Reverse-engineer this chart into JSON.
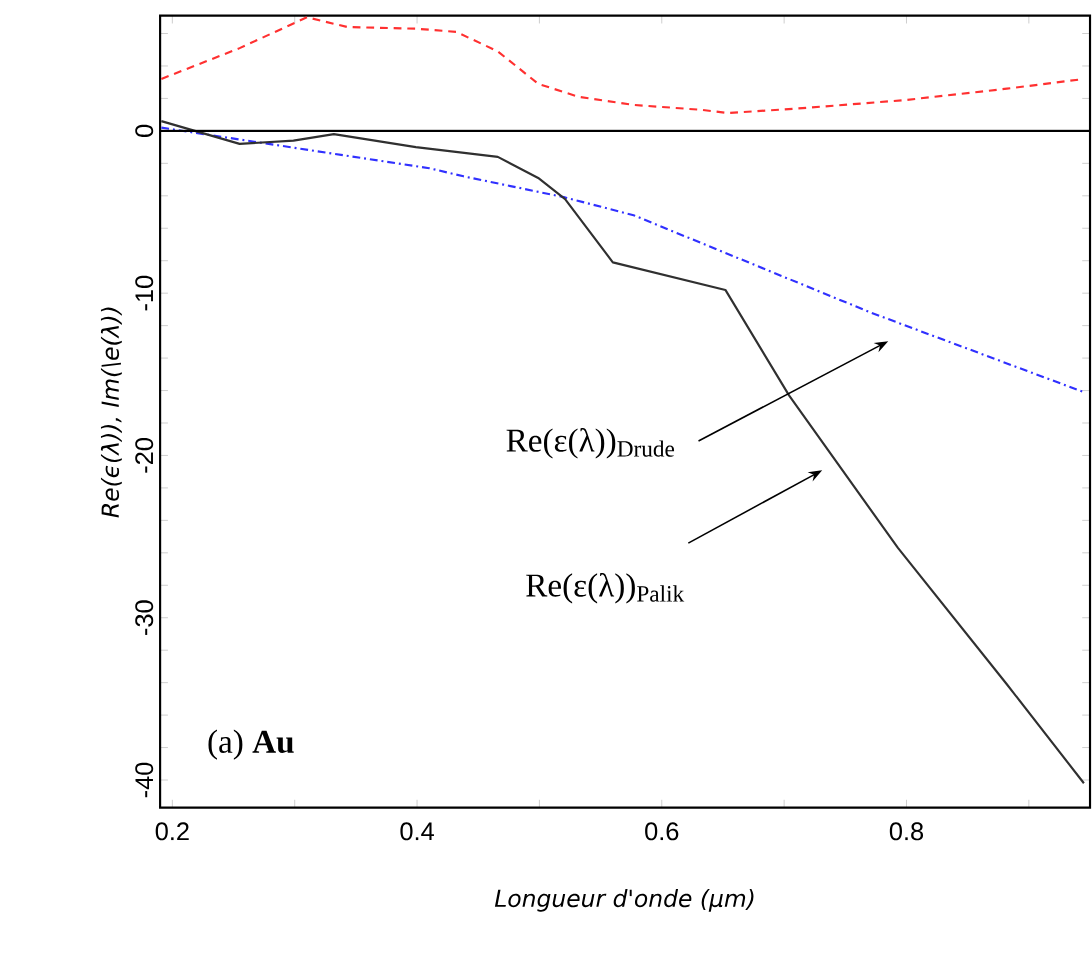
{
  "chart_data": {
    "type": "line",
    "xlabel": "Longueur d'onde (μm)",
    "ylabel": "Re(ϵ(λ)), Im(\\e(λ))",
    "xlim": [
      0.19,
      0.95
    ],
    "ylim": [
      -41.7,
      7.1
    ],
    "xticks": [
      0.2,
      {
        "value": 0.3,
        "label": null
      },
      0.4,
      {
        "value": 0.5,
        "label": null
      },
      0.6,
      {
        "value": 0.7,
        "label": null
      },
      0.8,
      {
        "value": 0.9,
        "label": null
      }
    ],
    "yticks": [
      {
        "value": 6,
        "label": null
      },
      {
        "value": 4,
        "label": null
      },
      {
        "value": 2,
        "label": null
      },
      0,
      {
        "value": -2,
        "label": null
      },
      {
        "value": -4,
        "label": null
      },
      {
        "value": -6,
        "label": null
      },
      {
        "value": -8,
        "label": null
      },
      -10,
      {
        "value": -12,
        "label": null
      },
      {
        "value": -14,
        "label": null
      },
      {
        "value": -16,
        "label": null
      },
      {
        "value": -18,
        "label": null
      },
      -20,
      {
        "value": -22,
        "label": null
      },
      {
        "value": -24,
        "label": null
      },
      {
        "value": -26,
        "label": null
      },
      {
        "value": -28,
        "label": null
      },
      -30,
      {
        "value": -32,
        "label": null
      },
      {
        "value": -34,
        "label": null
      },
      {
        "value": -36,
        "label": null
      },
      {
        "value": -38,
        "label": null
      },
      -40
    ],
    "grid": false,
    "marker": "none",
    "ref_lines": [
      {
        "axis": "y",
        "value": 0,
        "color": "#000000",
        "line_style": "solid"
      }
    ],
    "series": [
      {
        "color": "#ff3030",
        "line_style": "dashed",
        "x": [
          0.191,
          0.255,
          0.31,
          0.343,
          0.399,
          0.432,
          0.466,
          0.499,
          0.532,
          0.577,
          0.632,
          0.654,
          0.715,
          0.799,
          0.882,
          0.945
        ],
        "values": [
          3.2,
          5.1,
          7.0,
          6.4,
          6.3,
          6.1,
          4.9,
          2.9,
          2.1,
          1.6,
          1.3,
          1.1,
          1.4,
          1.9,
          2.6,
          3.2
        ]
      },
      {
        "color": "#3030ff",
        "line_style": "dashdot",
        "x": [
          0.191,
          0.41,
          0.438,
          0.521,
          0.577,
          0.771,
          0.945
        ],
        "values": [
          0.2,
          -2.3,
          -2.8,
          -4.1,
          -5.2,
          -11.2,
          -16.1
        ]
      },
      {
        "color": "#303030",
        "line_style": "solid",
        "x": [
          0.191,
          0.255,
          0.299,
          0.332,
          0.399,
          0.466,
          0.499,
          0.521,
          0.56,
          0.652,
          0.704,
          0.793,
          0.882,
          0.945
        ],
        "values": [
          0.6,
          -0.8,
          -0.6,
          -0.2,
          -1.0,
          -1.6,
          -2.9,
          -4.2,
          -8.1,
          -9.8,
          -16.3,
          -25.7,
          -34.1,
          -40.2
        ]
      }
    ],
    "annotations": [
      "Re(ε(λ))$_{Drude}$",
      "Re(ε(λ))$_{Palik}$",
      "(a) **Au**"
    ]
  }
}
